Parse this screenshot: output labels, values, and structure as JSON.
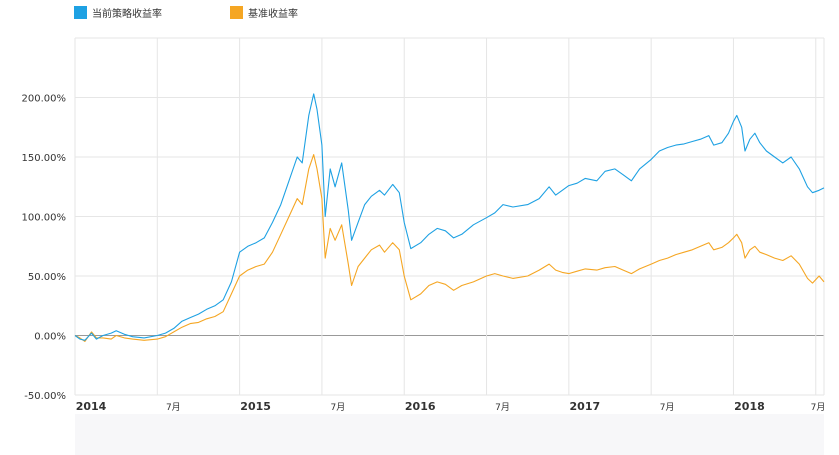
{
  "colors": {
    "strategy": "#1ea1e3",
    "benchmark": "#f5a623",
    "grid": "#e6e6e6",
    "zero_line": "#999999",
    "axis_text": "#333333"
  },
  "legend": [
    {
      "name": "当前策略收益率",
      "color": "#1ea1e3"
    },
    {
      "name": "基准收益率",
      "color": "#f5a623"
    }
  ],
  "chart_data": {
    "type": "line",
    "x_ticks": [
      "2014",
      "7月",
      "2015",
      "7月",
      "2016",
      "7月",
      "2017",
      "7月",
      "2018",
      "7月"
    ],
    "x_ticks_bold": [
      true,
      false,
      true,
      false,
      true,
      false,
      true,
      false,
      true,
      false
    ],
    "y_ticks": [
      "-50.00%",
      "0.00%",
      "50.00%",
      "100.00%",
      "150.00%",
      "200.00%"
    ],
    "ylim": [
      -50,
      250
    ],
    "xlim": [
      2014.0,
      2018.55
    ],
    "grid": true,
    "legend_position": "top-left",
    "series": [
      {
        "name": "当前策略收益率",
        "color": "#1ea1e3",
        "points": [
          [
            2014.0,
            0
          ],
          [
            2014.03,
            -3
          ],
          [
            2014.06,
            -4
          ],
          [
            2014.1,
            2
          ],
          [
            2014.13,
            -3
          ],
          [
            2014.17,
            0
          ],
          [
            2014.22,
            2
          ],
          [
            2014.25,
            4
          ],
          [
            2014.3,
            1
          ],
          [
            2014.35,
            -1
          ],
          [
            2014.42,
            -2
          ],
          [
            2014.5,
            0
          ],
          [
            2014.55,
            2
          ],
          [
            2014.6,
            6
          ],
          [
            2014.65,
            12
          ],
          [
            2014.7,
            15
          ],
          [
            2014.75,
            18
          ],
          [
            2014.8,
            22
          ],
          [
            2014.85,
            25
          ],
          [
            2014.9,
            30
          ],
          [
            2014.95,
            45
          ],
          [
            2015.0,
            70
          ],
          [
            2015.05,
            75
          ],
          [
            2015.1,
            78
          ],
          [
            2015.15,
            82
          ],
          [
            2015.2,
            95
          ],
          [
            2015.25,
            110
          ],
          [
            2015.3,
            130
          ],
          [
            2015.35,
            150
          ],
          [
            2015.38,
            145
          ],
          [
            2015.42,
            185
          ],
          [
            2015.45,
            203
          ],
          [
            2015.47,
            190
          ],
          [
            2015.5,
            160
          ],
          [
            2015.52,
            100
          ],
          [
            2015.55,
            140
          ],
          [
            2015.58,
            125
          ],
          [
            2015.62,
            145
          ],
          [
            2015.66,
            105
          ],
          [
            2015.68,
            80
          ],
          [
            2015.72,
            95
          ],
          [
            2015.76,
            110
          ],
          [
            2015.8,
            117
          ],
          [
            2015.85,
            122
          ],
          [
            2015.88,
            118
          ],
          [
            2015.93,
            127
          ],
          [
            2015.97,
            120
          ],
          [
            2016.0,
            95
          ],
          [
            2016.04,
            73
          ],
          [
            2016.1,
            78
          ],
          [
            2016.15,
            85
          ],
          [
            2016.2,
            90
          ],
          [
            2016.25,
            88
          ],
          [
            2016.3,
            82
          ],
          [
            2016.35,
            85
          ],
          [
            2016.42,
            93
          ],
          [
            2016.5,
            99
          ],
          [
            2016.55,
            103
          ],
          [
            2016.6,
            110
          ],
          [
            2016.66,
            108
          ],
          [
            2016.75,
            110
          ],
          [
            2016.82,
            115
          ],
          [
            2016.88,
            125
          ],
          [
            2016.92,
            118
          ],
          [
            2016.96,
            122
          ],
          [
            2017.0,
            126
          ],
          [
            2017.05,
            128
          ],
          [
            2017.1,
            132
          ],
          [
            2017.17,
            130
          ],
          [
            2017.22,
            138
          ],
          [
            2017.28,
            140
          ],
          [
            2017.33,
            135
          ],
          [
            2017.38,
            130
          ],
          [
            2017.43,
            140
          ],
          [
            2017.5,
            148
          ],
          [
            2017.55,
            155
          ],
          [
            2017.6,
            158
          ],
          [
            2017.65,
            160
          ],
          [
            2017.7,
            161
          ],
          [
            2017.75,
            163
          ],
          [
            2017.8,
            165
          ],
          [
            2017.85,
            168
          ],
          [
            2017.88,
            160
          ],
          [
            2017.93,
            162
          ],
          [
            2017.97,
            170
          ],
          [
            2018.0,
            180
          ],
          [
            2018.02,
            185
          ],
          [
            2018.05,
            175
          ],
          [
            2018.07,
            155
          ],
          [
            2018.1,
            165
          ],
          [
            2018.13,
            170
          ],
          [
            2018.16,
            162
          ],
          [
            2018.2,
            155
          ],
          [
            2018.25,
            150
          ],
          [
            2018.3,
            145
          ],
          [
            2018.35,
            150
          ],
          [
            2018.4,
            140
          ],
          [
            2018.45,
            125
          ],
          [
            2018.48,
            120
          ],
          [
            2018.52,
            122
          ],
          [
            2018.55,
            124
          ]
        ]
      },
      {
        "name": "基准收益率",
        "color": "#f5a623",
        "points": [
          [
            2014.0,
            0
          ],
          [
            2014.03,
            -2
          ],
          [
            2014.06,
            -5
          ],
          [
            2014.1,
            3
          ],
          [
            2014.13,
            -2
          ],
          [
            2014.17,
            -2
          ],
          [
            2014.22,
            -3
          ],
          [
            2014.25,
            0
          ],
          [
            2014.3,
            -2
          ],
          [
            2014.35,
            -3
          ],
          [
            2014.42,
            -4
          ],
          [
            2014.5,
            -3
          ],
          [
            2014.55,
            -1
          ],
          [
            2014.6,
            3
          ],
          [
            2014.65,
            7
          ],
          [
            2014.7,
            10
          ],
          [
            2014.75,
            11
          ],
          [
            2014.8,
            14
          ],
          [
            2014.85,
            16
          ],
          [
            2014.9,
            20
          ],
          [
            2014.95,
            35
          ],
          [
            2015.0,
            50
          ],
          [
            2015.05,
            55
          ],
          [
            2015.1,
            58
          ],
          [
            2015.15,
            60
          ],
          [
            2015.2,
            70
          ],
          [
            2015.25,
            85
          ],
          [
            2015.3,
            100
          ],
          [
            2015.35,
            115
          ],
          [
            2015.38,
            110
          ],
          [
            2015.42,
            140
          ],
          [
            2015.45,
            152
          ],
          [
            2015.47,
            140
          ],
          [
            2015.5,
            115
          ],
          [
            2015.52,
            65
          ],
          [
            2015.55,
            90
          ],
          [
            2015.58,
            80
          ],
          [
            2015.62,
            93
          ],
          [
            2015.66,
            60
          ],
          [
            2015.68,
            42
          ],
          [
            2015.72,
            58
          ],
          [
            2015.76,
            65
          ],
          [
            2015.8,
            72
          ],
          [
            2015.85,
            76
          ],
          [
            2015.88,
            70
          ],
          [
            2015.93,
            78
          ],
          [
            2015.97,
            72
          ],
          [
            2016.0,
            50
          ],
          [
            2016.04,
            30
          ],
          [
            2016.1,
            35
          ],
          [
            2016.15,
            42
          ],
          [
            2016.2,
            45
          ],
          [
            2016.25,
            43
          ],
          [
            2016.3,
            38
          ],
          [
            2016.35,
            42
          ],
          [
            2016.42,
            45
          ],
          [
            2016.5,
            50
          ],
          [
            2016.55,
            52
          ],
          [
            2016.6,
            50
          ],
          [
            2016.66,
            48
          ],
          [
            2016.75,
            50
          ],
          [
            2016.82,
            55
          ],
          [
            2016.88,
            60
          ],
          [
            2016.92,
            55
          ],
          [
            2016.96,
            53
          ],
          [
            2017.0,
            52
          ],
          [
            2017.05,
            54
          ],
          [
            2017.1,
            56
          ],
          [
            2017.17,
            55
          ],
          [
            2017.22,
            57
          ],
          [
            2017.28,
            58
          ],
          [
            2017.33,
            55
          ],
          [
            2017.38,
            52
          ],
          [
            2017.43,
            56
          ],
          [
            2017.5,
            60
          ],
          [
            2017.55,
            63
          ],
          [
            2017.6,
            65
          ],
          [
            2017.65,
            68
          ],
          [
            2017.7,
            70
          ],
          [
            2017.75,
            72
          ],
          [
            2017.8,
            75
          ],
          [
            2017.85,
            78
          ],
          [
            2017.88,
            72
          ],
          [
            2017.93,
            74
          ],
          [
            2017.97,
            78
          ],
          [
            2018.0,
            82
          ],
          [
            2018.02,
            85
          ],
          [
            2018.05,
            78
          ],
          [
            2018.07,
            65
          ],
          [
            2018.1,
            72
          ],
          [
            2018.13,
            75
          ],
          [
            2018.16,
            70
          ],
          [
            2018.2,
            68
          ],
          [
            2018.25,
            65
          ],
          [
            2018.3,
            63
          ],
          [
            2018.35,
            67
          ],
          [
            2018.4,
            60
          ],
          [
            2018.45,
            48
          ],
          [
            2018.48,
            44
          ],
          [
            2018.52,
            50
          ],
          [
            2018.55,
            45
          ]
        ]
      }
    ]
  }
}
